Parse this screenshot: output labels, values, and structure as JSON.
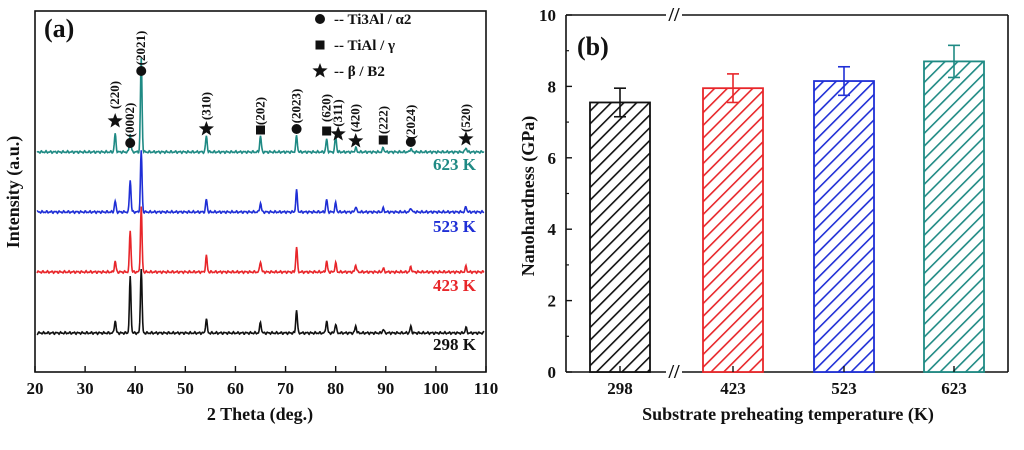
{
  "chart_data": [
    {
      "type": "line",
      "panel": "(a)",
      "xlabel": "2 Theta (deg.)",
      "ylabel": "Intensity (a.u.)",
      "xlim": [
        20,
        110
      ],
      "xticks": [
        20,
        30,
        40,
        50,
        60,
        70,
        80,
        90,
        100,
        110
      ],
      "legend": [
        {
          "symbol": "circle",
          "text": "-- Ti3Al / α2"
        },
        {
          "symbol": "square",
          "text": "-- TiAl / γ"
        },
        {
          "symbol": "star",
          "text": "-- β / B2"
        }
      ],
      "peaks": [
        {
          "two_theta": 36.0,
          "label": "(220)",
          "symbol": "star"
        },
        {
          "two_theta": 39.0,
          "label": "(0002)",
          "symbol": "circle"
        },
        {
          "two_theta": 41.2,
          "label": "(2021)",
          "symbol": "circle"
        },
        {
          "two_theta": 54.2,
          "label": "(310)",
          "symbol": "star"
        },
        {
          "two_theta": 65.0,
          "label": "(202)",
          "symbol": "square"
        },
        {
          "two_theta": 72.2,
          "label": "(2023)",
          "symbol": "circle"
        },
        {
          "two_theta": 78.2,
          "label": "(620)",
          "symbol": "square"
        },
        {
          "two_theta": 80.5,
          "label": "(311)",
          "symbol": "star"
        },
        {
          "two_theta": 84.0,
          "label": "(420)",
          "symbol": "star"
        },
        {
          "two_theta": 89.5,
          "label": "(222)",
          "symbol": "square"
        },
        {
          "two_theta": 95.0,
          "label": "(2024)",
          "symbol": "circle"
        },
        {
          "two_theta": 106.0,
          "label": "(520)",
          "symbol": "star"
        }
      ],
      "series": [
        {
          "name": "298 K",
          "label": "298 K",
          "color": "#111111",
          "offset": 0,
          "peaks": [
            [
              36.0,
              0.35
            ],
            [
              39.0,
              1.55
            ],
            [
              41.2,
              1.8
            ],
            [
              54.2,
              0.4
            ],
            [
              65.0,
              0.3
            ],
            [
              72.2,
              0.65
            ],
            [
              78.2,
              0.35
            ],
            [
              80.0,
              0.25
            ],
            [
              84.0,
              0.2
            ],
            [
              89.5,
              0.1
            ],
            [
              95.0,
              0.18
            ],
            [
              106.0,
              0.15
            ]
          ]
        },
        {
          "name": "423 K",
          "label": "423 K",
          "color": "#e8262a",
          "offset": 1,
          "peaks": [
            [
              36.0,
              0.3
            ],
            [
              39.0,
              1.15
            ],
            [
              41.2,
              1.8
            ],
            [
              54.2,
              0.45
            ],
            [
              65.0,
              0.3
            ],
            [
              72.2,
              0.7
            ],
            [
              78.2,
              0.3
            ],
            [
              80.0,
              0.25
            ],
            [
              84.0,
              0.2
            ],
            [
              89.5,
              0.1
            ],
            [
              95.0,
              0.15
            ],
            [
              106.0,
              0.15
            ]
          ]
        },
        {
          "name": "523 K",
          "label": "523 K",
          "color": "#1f2fd6",
          "offset": 2,
          "peaks": [
            [
              36.0,
              0.3
            ],
            [
              39.0,
              0.9
            ],
            [
              41.2,
              1.7
            ],
            [
              54.2,
              0.35
            ],
            [
              65.0,
              0.25
            ],
            [
              72.2,
              0.6
            ],
            [
              78.2,
              0.35
            ],
            [
              80.0,
              0.25
            ],
            [
              84.0,
              0.15
            ],
            [
              89.5,
              0.1
            ],
            [
              95.0,
              0.12
            ],
            [
              106.0,
              0.15
            ]
          ]
        },
        {
          "name": "623 K",
          "label": "623 K",
          "color": "#1f8a84",
          "offset": 3,
          "peaks": [
            [
              36.0,
              0.5
            ],
            [
              39.0,
              0.5
            ],
            [
              41.2,
              2.6
            ],
            [
              54.2,
              0.45
            ],
            [
              65.0,
              0.45
            ],
            [
              72.2,
              0.45
            ],
            [
              78.2,
              0.35
            ],
            [
              80.0,
              0.45
            ],
            [
              84.0,
              0.12
            ],
            [
              89.5,
              0.12
            ],
            [
              95.0,
              0.1
            ],
            [
              106.0,
              0.12
            ]
          ]
        }
      ]
    },
    {
      "type": "bar",
      "panel": "(b)",
      "xlabel": "Substrate preheating temperature (K)",
      "ylabel": "Nanohardness (GPa)",
      "ylim": [
        0,
        10
      ],
      "yticks": [
        0,
        2,
        4,
        6,
        8,
        10
      ],
      "axis_break": "//",
      "categories": [
        "298",
        "423",
        "523",
        "623"
      ],
      "values": [
        7.55,
        7.95,
        8.15,
        8.7
      ],
      "errors": [
        0.4,
        0.4,
        0.4,
        0.45
      ],
      "colors": [
        "#111111",
        "#e8262a",
        "#1f2fd6",
        "#1f8a84"
      ],
      "pattern": "diagonal-hatch"
    }
  ]
}
